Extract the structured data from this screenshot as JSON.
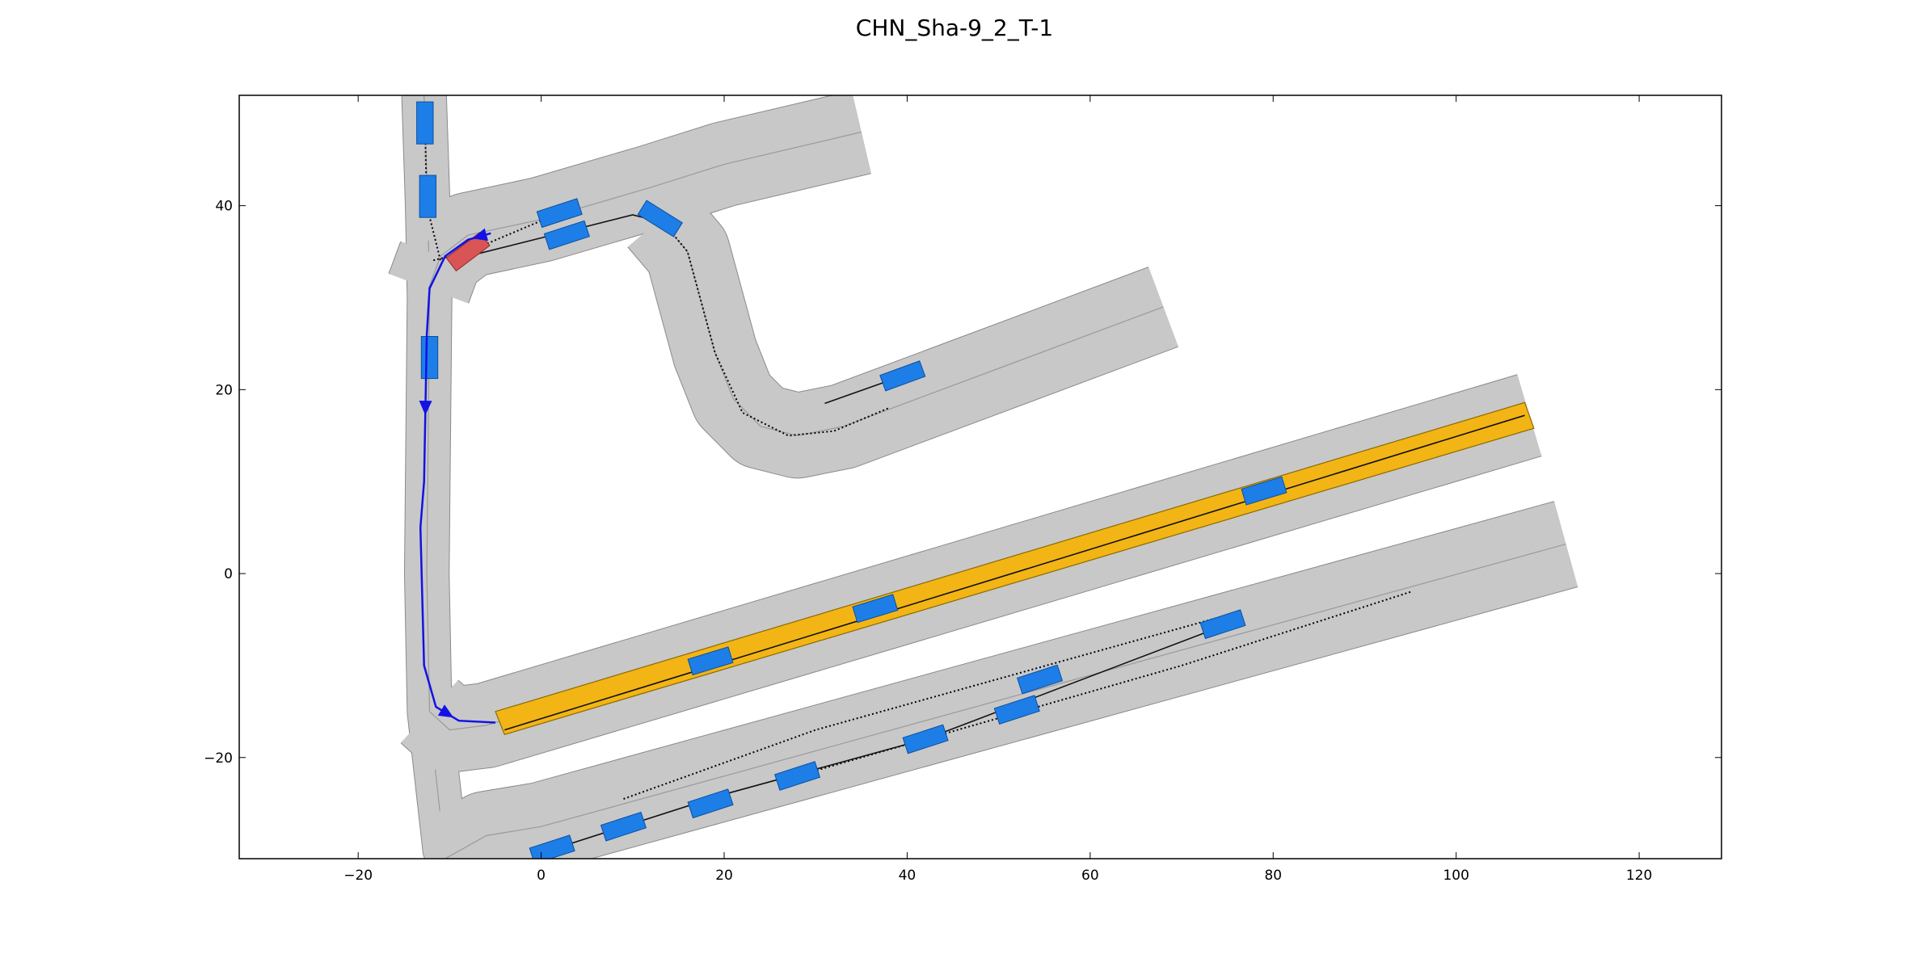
{
  "title": "CHN_Sha-9_2_T-1",
  "colors": {
    "road": "#c8c8c8",
    "road_edge": "#8a8a8a",
    "lane_arrow": "#e4e4e4",
    "vehicle": "#1e7ee8",
    "ego": "#d95454",
    "goal_region": "#f3b515",
    "planned_path": "#1212e6"
  },
  "axes": {
    "xlim": [
      -33,
      129
    ],
    "ylim": [
      -31,
      52
    ],
    "xticks": [
      -20,
      0,
      20,
      40,
      60,
      80,
      100,
      120
    ],
    "yticks": [
      -20,
      0,
      20,
      40
    ]
  },
  "chart_data": {
    "type": "scenario_map",
    "title": "CHN_Sha-9_2_T-1",
    "roads": [
      {
        "id": "vertical-road",
        "center": [
          [
            -12.8,
            52
          ],
          [
            -12.4,
            40
          ],
          [
            -12.2,
            30
          ],
          [
            -12.5,
            0
          ],
          [
            -12.2,
            -15
          ],
          [
            -10.5,
            -30
          ],
          [
            -9.5,
            -31
          ]
        ],
        "width": 2.4
      },
      {
        "id": "vertical-branch",
        "center": [
          [
            -12.2,
            -15
          ],
          [
            -11.5,
            -22
          ],
          [
            -10.5,
            -31
          ]
        ],
        "width": 2.2
      },
      {
        "id": "upper-road",
        "center": [
          [
            -11,
            34.5
          ],
          [
            -8,
            36.8
          ],
          [
            0,
            38.5
          ],
          [
            12,
            42
          ],
          [
            20,
            44.5
          ],
          [
            35,
            48
          ]
        ],
        "width": 4.6
      },
      {
        "id": "upper-connector",
        "center": [
          [
            -12.3,
            31
          ],
          [
            -11,
            34.5
          ]
        ],
        "width": 4.6
      },
      {
        "id": "s-curve-road",
        "center": [
          [
            13,
            38.5
          ],
          [
            16,
            35
          ],
          [
            19,
            24
          ],
          [
            21,
            19
          ],
          [
            24,
            16
          ],
          [
            28,
            15
          ],
          [
            33,
            16
          ],
          [
            68,
            29
          ]
        ],
        "width": 4.6
      },
      {
        "id": "goal-road",
        "center": [
          [
            -12.2,
            -15
          ],
          [
            -10,
            -17
          ],
          [
            -6,
            -16.5
          ],
          [
            108,
            17.2
          ]
        ],
        "width": 4.6
      },
      {
        "id": "bottom-road",
        "center": [
          [
            -10.5,
            -31
          ],
          [
            -6,
            -28.5
          ],
          [
            0,
            -27.5
          ],
          [
            112,
            3.2
          ]
        ],
        "width": 4.8
      }
    ],
    "goal_region": {
      "polygon": [
        [
          -5,
          -15
        ],
        [
          107.5,
          18.6
        ],
        [
          108.5,
          15.8
        ],
        [
          -4,
          -17.5
        ]
      ]
    },
    "ego_vehicle": {
      "position": [
        -8,
        35
      ],
      "heading_deg": 37
    },
    "planned_path": [
      [
        -5.5,
        37
      ],
      [
        -8,
        36.3
      ],
      [
        -10.5,
        34.5
      ],
      [
        -12.2,
        31
      ],
      [
        -12.5,
        26
      ],
      [
        -12.8,
        10
      ],
      [
        -13.2,
        5
      ],
      [
        -12.8,
        -10
      ],
      [
        -11.5,
        -14.5
      ],
      [
        -9,
        -16
      ],
      [
        -5,
        -16.2
      ]
    ],
    "vehicles": [
      {
        "position": [
          -12.7,
          49
        ],
        "heading_deg": 90
      },
      {
        "position": [
          -12.4,
          41
        ],
        "heading_deg": 90
      },
      {
        "position": [
          -12.2,
          23.5
        ],
        "heading_deg": 90
      },
      {
        "position": [
          2,
          39.2
        ],
        "heading_deg": 18
      },
      {
        "position": [
          2.8,
          36.8
        ],
        "heading_deg": 18
      },
      {
        "position": [
          13,
          38.6
        ],
        "heading_deg": -32
      },
      {
        "position": [
          39.5,
          21.5
        ],
        "heading_deg": 20
      },
      {
        "position": [
          18.5,
          -9.5
        ],
        "heading_deg": 17
      },
      {
        "position": [
          36.5,
          -3.8
        ],
        "heading_deg": 17
      },
      {
        "position": [
          79,
          9
        ],
        "heading_deg": 17
      },
      {
        "position": [
          1.2,
          -30
        ],
        "heading_deg": 18
      },
      {
        "position": [
          9,
          -27.5
        ],
        "heading_deg": 18
      },
      {
        "position": [
          18.5,
          -25
        ],
        "heading_deg": 18
      },
      {
        "position": [
          28,
          -22
        ],
        "heading_deg": 18
      },
      {
        "position": [
          42,
          -18
        ],
        "heading_deg": 18
      },
      {
        "position": [
          52,
          -14.8
        ],
        "heading_deg": 18
      },
      {
        "position": [
          54.5,
          -11.5
        ],
        "heading_deg": 18
      },
      {
        "position": [
          74.5,
          -5.5
        ],
        "heading_deg": 18
      }
    ],
    "trajectories_dotted": [
      [
        [
          2,
          39.2
        ],
        [
          -8,
          35
        ],
        [
          -12,
          34
        ]
      ],
      [
        [
          -12.7,
          49
        ],
        [
          -12.5,
          40
        ],
        [
          -11,
          34
        ]
      ],
      [
        [
          13,
          38.6
        ],
        [
          16,
          35
        ],
        [
          19,
          24
        ],
        [
          22,
          17.5
        ],
        [
          27,
          15
        ],
        [
          32,
          15.5
        ],
        [
          38,
          18
        ]
      ],
      [
        [
          9,
          -24.5
        ],
        [
          30,
          -17
        ],
        [
          75,
          -4.5
        ]
      ],
      [
        [
          28,
          -22
        ],
        [
          70,
          -10
        ],
        [
          95,
          -2
        ]
      ]
    ],
    "trajectories_solid": [
      [
        [
          -8,
          34.5
        ],
        [
          0,
          36.5
        ],
        [
          10,
          39
        ],
        [
          14,
          38
        ]
      ],
      [
        [
          31,
          18.5
        ],
        [
          39.5,
          21.5
        ]
      ],
      [
        [
          -4,
          -17
        ],
        [
          107.5,
          17.2
        ]
      ],
      [
        [
          1.2,
          -30
        ],
        [
          20,
          -24
        ],
        [
          42,
          -18
        ],
        [
          75,
          -5.5
        ]
      ]
    ]
  }
}
